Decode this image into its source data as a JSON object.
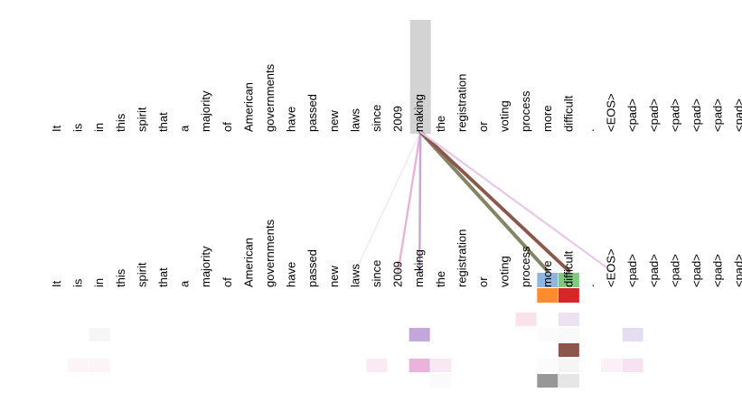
{
  "tokens": [
    "It",
    "is",
    "in",
    "this",
    "spirit",
    "that",
    "a",
    "majority",
    "of",
    "American",
    "governments",
    "have",
    "passed",
    "new",
    "laws",
    "since",
    "2009",
    "making",
    "the",
    "registration",
    "or",
    "voting",
    "process",
    "more",
    "difficult",
    ".",
    "<EOS>",
    "<pad>",
    "<pad>",
    "<pad>",
    "<pad>",
    "<pad>",
    "<pad>"
  ],
  "selected_token_index": 17,
  "highlight_color": "#d3d3d3",
  "attention_lines": [
    {
      "to": 14,
      "color": "#f7e4ee",
      "weight": 0.15
    },
    {
      "to": 16,
      "color": "#e8b3d6",
      "weight": 0.45
    },
    {
      "to": 17,
      "color": "#c9a6d4",
      "weight": 0.5
    },
    {
      "to": 23,
      "color": "#858565",
      "weight": 1.0
    },
    {
      "to": 24,
      "color": "#8c564b",
      "weight": 0.95
    },
    {
      "to": 26,
      "color": "#e6c7ea",
      "weight": 0.4
    }
  ],
  "token_cells": [
    {
      "index": 23,
      "colors": [
        "#8fb6dc",
        "#ff8c2a"
      ]
    },
    {
      "index": 24,
      "colors": [
        "#82c882",
        "#d62728"
      ]
    }
  ],
  "heatmap": [
    {
      "row": 0,
      "col": 22,
      "color": "#f9e3e8"
    },
    {
      "row": 0,
      "col": 24,
      "color": "#ece2f2"
    },
    {
      "row": 1,
      "col": 2,
      "color": "#f6f6f6"
    },
    {
      "row": 1,
      "col": 17,
      "color": "#c3a7da"
    },
    {
      "row": 1,
      "col": 23,
      "color": "#fbfbfb"
    },
    {
      "row": 1,
      "col": 24,
      "color": "#f9f9f9"
    },
    {
      "row": 1,
      "col": 27,
      "color": "#e6ddf3"
    },
    {
      "row": 2,
      "col": 24,
      "color": "#8c564b"
    },
    {
      "row": 3,
      "col": 1,
      "color": "#fbf5f8"
    },
    {
      "row": 3,
      "col": 2,
      "color": "#fbf5f8"
    },
    {
      "row": 3,
      "col": 15,
      "color": "#fbeaf3"
    },
    {
      "row": 3,
      "col": 17,
      "color": "#ebb3dc"
    },
    {
      "row": 3,
      "col": 18,
      "color": "#f7e8f3"
    },
    {
      "row": 3,
      "col": 23,
      "color": "#fbfbfb"
    },
    {
      "row": 3,
      "col": 24,
      "color": "#f5f5f5"
    },
    {
      "row": 3,
      "col": 26,
      "color": "#fbf0f6"
    },
    {
      "row": 3,
      "col": 27,
      "color": "#f8e2f1"
    },
    {
      "row": 4,
      "col": 18,
      "color": "#fafafa"
    },
    {
      "row": 4,
      "col": 23,
      "color": "#979797"
    },
    {
      "row": 4,
      "col": 24,
      "color": "#e6e6e6"
    }
  ]
}
